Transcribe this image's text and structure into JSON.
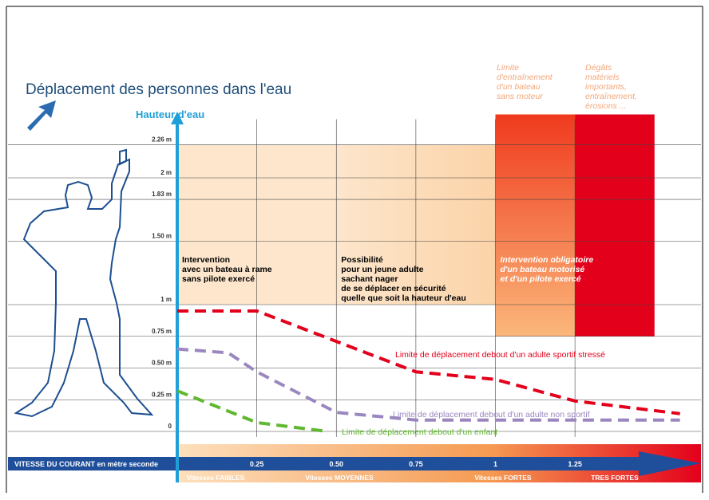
{
  "chart_data": {
    "type": "line",
    "title": "Déplacement des personnes dans l'eau",
    "y_label": "Hauteur d'eau",
    "x_label": "VITESSE DU COURANT en mètre seconde",
    "xlim": [
      0,
      1.6
    ],
    "ylim": [
      0,
      2.5
    ],
    "xticks": [
      0.25,
      {
        "value": 0.5,
        "label": "0.50"
      },
      0.75,
      1,
      1.25
    ],
    "yticks": [
      0,
      {
        "value": 0.25,
        "label": "0.25 m"
      },
      {
        "value": 0.5,
        "label": "0.50 m"
      },
      {
        "value": 0.75,
        "label": "0.75 m"
      },
      {
        "value": 1,
        "label": "1 m"
      },
      {
        "value": 1.5,
        "label": "1.50 m"
      },
      {
        "value": 1.83,
        "label": "1.83 m"
      },
      {
        "value": 2,
        "label": "2 m"
      },
      {
        "value": 2.26,
        "label": "2.26 m"
      }
    ],
    "grid": true,
    "speed_classes": [
      "Vitesses FAIBLES",
      "Vitesses MOYENNES",
      "Vitesses FORTES",
      "TRES FORTES"
    ],
    "zones": [
      {
        "x": [
          0,
          0.5
        ],
        "y": [
          1,
          2.26
        ],
        "color": "#fde6cc",
        "lines": [
          "Intervention",
          "avec un bateau à rame",
          "sans pilote exercé"
        ]
      },
      {
        "x": [
          0.5,
          1
        ],
        "y": [
          1,
          2.26
        ],
        "color": "#fde3c6",
        "lines": [
          "Possibilité",
          "pour un jeune adulte",
          "sachant nager",
          "de se déplacer en sécurité",
          "quelle que soit la hauteur d'eau"
        ]
      },
      {
        "x": [
          1,
          1.25
        ],
        "y": [
          0.75,
          2.5
        ],
        "color": "#f4622a",
        "lines": [
          "Intervention obligatoire",
          "d'un bateau motorisé",
          "et d'un pilote exercé"
        ]
      },
      {
        "x": [
          1.25,
          1.5
        ],
        "y": [
          0.75,
          2.5
        ],
        "color": "#e3001b",
        "lines": []
      }
    ],
    "notes": [
      {
        "lines": [
          "Limite",
          "d'entraînement",
          "d'un bateau",
          "sans moteur"
        ]
      },
      {
        "lines": [
          "Dégâts",
          "matériels",
          "importants,",
          "entraînement,",
          "érosions ..."
        ]
      }
    ],
    "series": [
      {
        "name": "Limite de déplacement debout d'un adulte sportif stressé",
        "color": "#e3001b",
        "x": [
          0,
          0.25,
          0.5,
          0.75,
          1,
          1.25,
          1.58
        ],
        "values": [
          0.95,
          0.95,
          0.71,
          0.47,
          0.41,
          0.24,
          0.14
        ]
      },
      {
        "name": "Limite de déplacement debout d'un adulte non sportif",
        "color": "#9b87c0",
        "x": [
          0,
          0.16,
          0.25,
          0.5,
          0.75,
          1.58
        ],
        "values": [
          0.65,
          0.62,
          0.47,
          0.15,
          0.09,
          0.09
        ]
      },
      {
        "name": "Limite de déplacement debout d'un enfant",
        "color": "#5fb830",
        "x": [
          0,
          0.25,
          0.47
        ],
        "values": [
          0.32,
          0.07,
          0
        ]
      }
    ]
  }
}
